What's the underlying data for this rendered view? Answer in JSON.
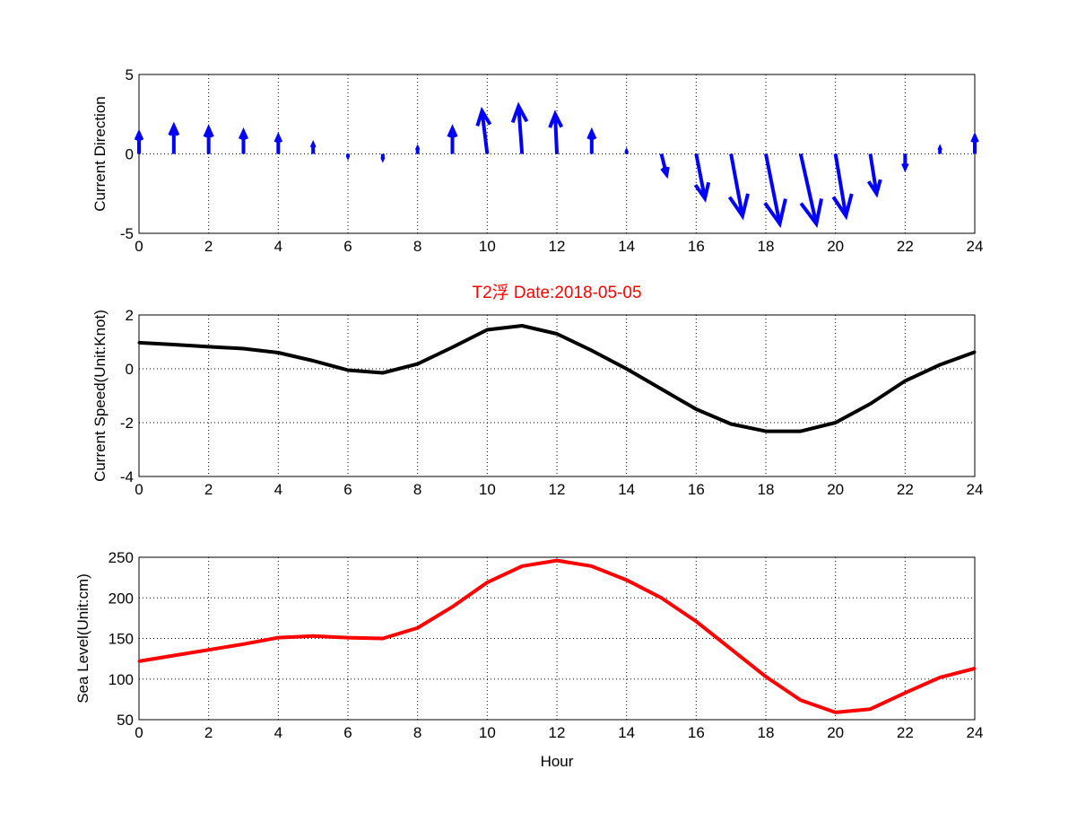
{
  "chart_data": [
    {
      "type": "quiver",
      "ylabel": "Current Direction",
      "xlabel": "",
      "xlim": [
        0,
        24
      ],
      "ylim": [
        -5,
        5
      ],
      "xticks": [
        0,
        2,
        4,
        6,
        8,
        10,
        12,
        14,
        16,
        18,
        20,
        22,
        24
      ],
      "yticks": [
        5,
        0,
        -5
      ],
      "grid": true,
      "color": "#0000ff",
      "x": [
        0,
        1,
        2,
        3,
        4,
        5,
        6,
        7,
        8,
        9,
        10,
        11,
        12,
        13,
        14,
        15,
        16,
        17,
        18,
        19,
        20,
        21,
        22,
        23,
        24
      ],
      "u": [
        0,
        0,
        0,
        0,
        0,
        0,
        0,
        0,
        0,
        0,
        -0.15,
        -0.1,
        -0.05,
        0,
        0,
        0.15,
        0.25,
        0.33,
        0.4,
        0.45,
        0.3,
        0.18,
        0,
        0,
        0
      ],
      "v": [
        1.3,
        1.75,
        1.6,
        1.4,
        1.1,
        0.6,
        -0.15,
        -0.3,
        0.35,
        1.6,
        2.7,
        3.0,
        2.5,
        1.4,
        0.15,
        -1.3,
        -2.8,
        -3.9,
        -4.4,
        -4.4,
        -3.9,
        -2.5,
        -0.9,
        0.35,
        1.1
      ]
    },
    {
      "type": "line",
      "title": "T2浮    Date:2018-05-05",
      "ylabel": "Current Speed(Unit:Knot)",
      "xlabel": "",
      "xlim": [
        0,
        24
      ],
      "ylim": [
        -4,
        2
      ],
      "xticks": [
        0,
        2,
        4,
        6,
        8,
        10,
        12,
        14,
        16,
        18,
        20,
        22,
        24
      ],
      "yticks": [
        2,
        0,
        -2,
        -4
      ],
      "grid": true,
      "color": "#000000",
      "x": [
        0,
        1,
        2,
        3,
        4,
        5,
        6,
        7,
        8,
        9,
        10,
        11,
        12,
        13,
        14,
        15,
        16,
        17,
        18,
        19,
        20,
        21,
        22,
        23,
        24
      ],
      "y": [
        0.97,
        0.9,
        0.82,
        0.75,
        0.6,
        0.3,
        -0.05,
        -0.15,
        0.18,
        0.8,
        1.45,
        1.6,
        1.3,
        0.68,
        0.0,
        -0.75,
        -1.5,
        -2.05,
        -2.32,
        -2.32,
        -2.0,
        -1.3,
        -0.45,
        0.15,
        0.62
      ]
    },
    {
      "type": "line",
      "ylabel": "Sea Level(Unit:cm)",
      "xlabel": "Hour",
      "xlim": [
        0,
        24
      ],
      "ylim": [
        50,
        250
      ],
      "xticks": [
        0,
        2,
        4,
        6,
        8,
        10,
        12,
        14,
        16,
        18,
        20,
        22,
        24
      ],
      "yticks": [
        250,
        200,
        150,
        100,
        50
      ],
      "grid": true,
      "color": "#ff0000",
      "x": [
        0,
        1,
        2,
        3,
        4,
        5,
        6,
        7,
        8,
        9,
        10,
        11,
        12,
        13,
        14,
        15,
        16,
        17,
        18,
        19,
        20,
        21,
        22,
        23,
        24
      ],
      "y": [
        122,
        129,
        136,
        143,
        151,
        153,
        151,
        150,
        163,
        189,
        219,
        239,
        246,
        239,
        222,
        200,
        171,
        137,
        103,
        74,
        59,
        63,
        83,
        102,
        113
      ]
    }
  ]
}
